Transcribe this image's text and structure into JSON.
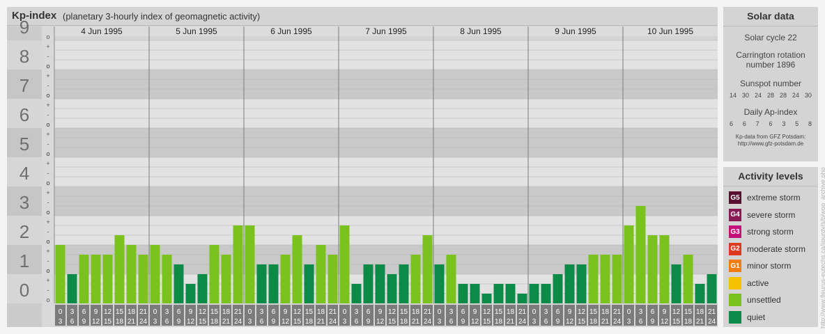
{
  "title": {
    "main": "Kp-index",
    "subtitle": "(planetary 3-hourly index of geomagnetic activity)"
  },
  "chart_data": {
    "type": "bar",
    "ylim": [
      0,
      9
    ],
    "y_ticks": [
      "0",
      "1",
      "2",
      "3",
      "4",
      "5",
      "6",
      "7",
      "8",
      "9"
    ],
    "minor_marks": [
      "o",
      "-",
      "+",
      "o"
    ],
    "days": [
      "4 Jun 1995",
      "5 Jun 1995",
      "6 Jun 1995",
      "7 Jun 1995",
      "8 Jun 1995",
      "9 Jun 1995",
      "10 Jun 1995"
    ],
    "interval_labels": [
      [
        "0",
        "3"
      ],
      [
        "3",
        "6"
      ],
      [
        "6",
        "9"
      ],
      [
        "9",
        "12"
      ],
      [
        "12",
        "15"
      ],
      [
        "15",
        "18"
      ],
      [
        "18",
        "21"
      ],
      [
        "21",
        "24"
      ]
    ],
    "values": [
      [
        2.0,
        1.0,
        1.667,
        1.667,
        1.667,
        2.333,
        2.0,
        1.667
      ],
      [
        2.0,
        1.667,
        1.333,
        0.667,
        1.0,
        2.0,
        1.667,
        2.667
      ],
      [
        2.667,
        1.333,
        1.333,
        1.667,
        2.333,
        1.333,
        2.0,
        1.667
      ],
      [
        2.667,
        0.667,
        1.333,
        1.333,
        1.0,
        1.333,
        1.667,
        2.333
      ],
      [
        1.333,
        1.667,
        0.667,
        0.667,
        0.333,
        0.667,
        0.667,
        0.333
      ],
      [
        0.667,
        0.667,
        1.0,
        1.333,
        1.333,
        1.667,
        1.667,
        1.667
      ],
      [
        2.667,
        3.333,
        2.333,
        2.333,
        1.333,
        1.667,
        0.667,
        1.0
      ]
    ],
    "colors": {
      "quiet": "#0b8b47",
      "unsettled": "#7cc21f"
    }
  },
  "solar_data": {
    "title": "Solar data",
    "solar_cycle": "Solar cycle 22",
    "carrington_line1": "Carrington rotation",
    "carrington_line2": "number 1896",
    "sunspot_title": "Sunspot number",
    "sunspot_values": [
      "14",
      "30",
      "24",
      "28",
      "28",
      "24",
      "30"
    ],
    "ap_title": "Daily Ap-index",
    "ap_values": [
      "6",
      "6",
      "7",
      "6",
      "3",
      "5",
      "8"
    ],
    "credit_line1": "Kp-data from GFZ Potsdam:",
    "credit_line2": "http://www.gfz-potsdam.de"
  },
  "activity_levels": {
    "title": "Activity levels",
    "items": [
      {
        "badge": "G5",
        "label": "extreme storm",
        "color": "#5b0f2e"
      },
      {
        "badge": "G4",
        "label": "severe storm",
        "color": "#8a1a56"
      },
      {
        "badge": "G3",
        "label": "strong storm",
        "color": "#c5127a"
      },
      {
        "badge": "G2",
        "label": "moderate storm",
        "color": "#dd3a1f"
      },
      {
        "badge": "G1",
        "label": "minor storm",
        "color": "#ef7d12"
      },
      {
        "badge": "",
        "label": "active",
        "color": "#f6c100"
      },
      {
        "badge": "",
        "label": "unsettled",
        "color": "#7cc21f"
      },
      {
        "badge": "",
        "label": "quiet",
        "color": "#0b8b47"
      }
    ]
  },
  "watermark": "http://www.fleurus-eutechs.ca/jjpurdy/s/b/wgp_archive.php"
}
